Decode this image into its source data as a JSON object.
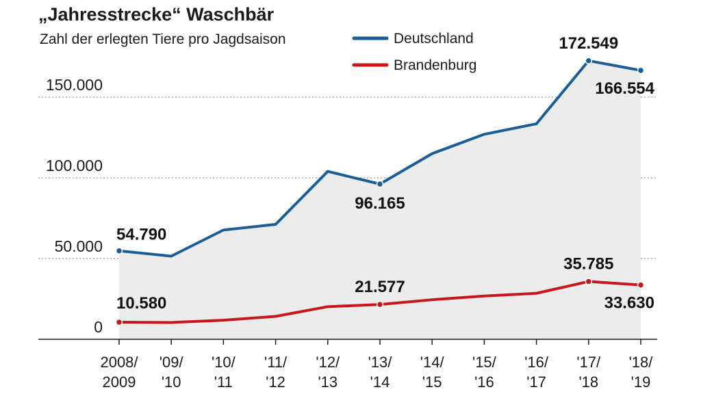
{
  "chart_data": {
    "type": "line",
    "title": "„Jahresstrecke“ Waschbär",
    "subtitle": "Zahl der erlegten Tiere pro Jagdsaison",
    "categories": [
      [
        "2008/",
        "2009"
      ],
      [
        "'09/",
        "'10"
      ],
      [
        "'10/",
        "'11"
      ],
      [
        "'11/",
        "'12"
      ],
      [
        "'12/",
        "'13"
      ],
      [
        "'13/",
        "'14"
      ],
      [
        "'14/",
        "'15"
      ],
      [
        "'15/",
        "'16"
      ],
      [
        "'16/",
        "'17"
      ],
      [
        "'17/",
        "'18"
      ],
      [
        "'18/",
        "'19"
      ]
    ],
    "ylim": [
      0,
      160000
    ],
    "yticks": [
      0,
      50000,
      100000,
      150000
    ],
    "ytick_labels": [
      "0",
      "50.000",
      "100.000",
      "150.000"
    ],
    "grid": "horizontal-dotted",
    "legend_position": "top-center",
    "series": [
      {
        "name": "Deutschland",
        "color": "#1b5d96",
        "values": [
          54790,
          51500,
          67700,
          71200,
          104000,
          96165,
          115000,
          127000,
          133500,
          172549,
          166554
        ],
        "labels": [
          {
            "index": 0,
            "text": "54.790"
          },
          {
            "index": 5,
            "text": "96.165"
          },
          {
            "index": 9,
            "text": "172.549"
          },
          {
            "index": 10,
            "text": "166.554"
          }
        ]
      },
      {
        "name": "Brandenburg",
        "color": "#c8161d",
        "values": [
          10580,
          10400,
          11800,
          14200,
          20200,
          21577,
          24500,
          26800,
          28500,
          35785,
          33630
        ],
        "labels": [
          {
            "index": 0,
            "text": "10.580"
          },
          {
            "index": 5,
            "text": "21.577"
          },
          {
            "index": 9,
            "text": "35.785"
          },
          {
            "index": 10,
            "text": "33.630"
          }
        ]
      }
    ],
    "area_fill": "#ececec"
  }
}
